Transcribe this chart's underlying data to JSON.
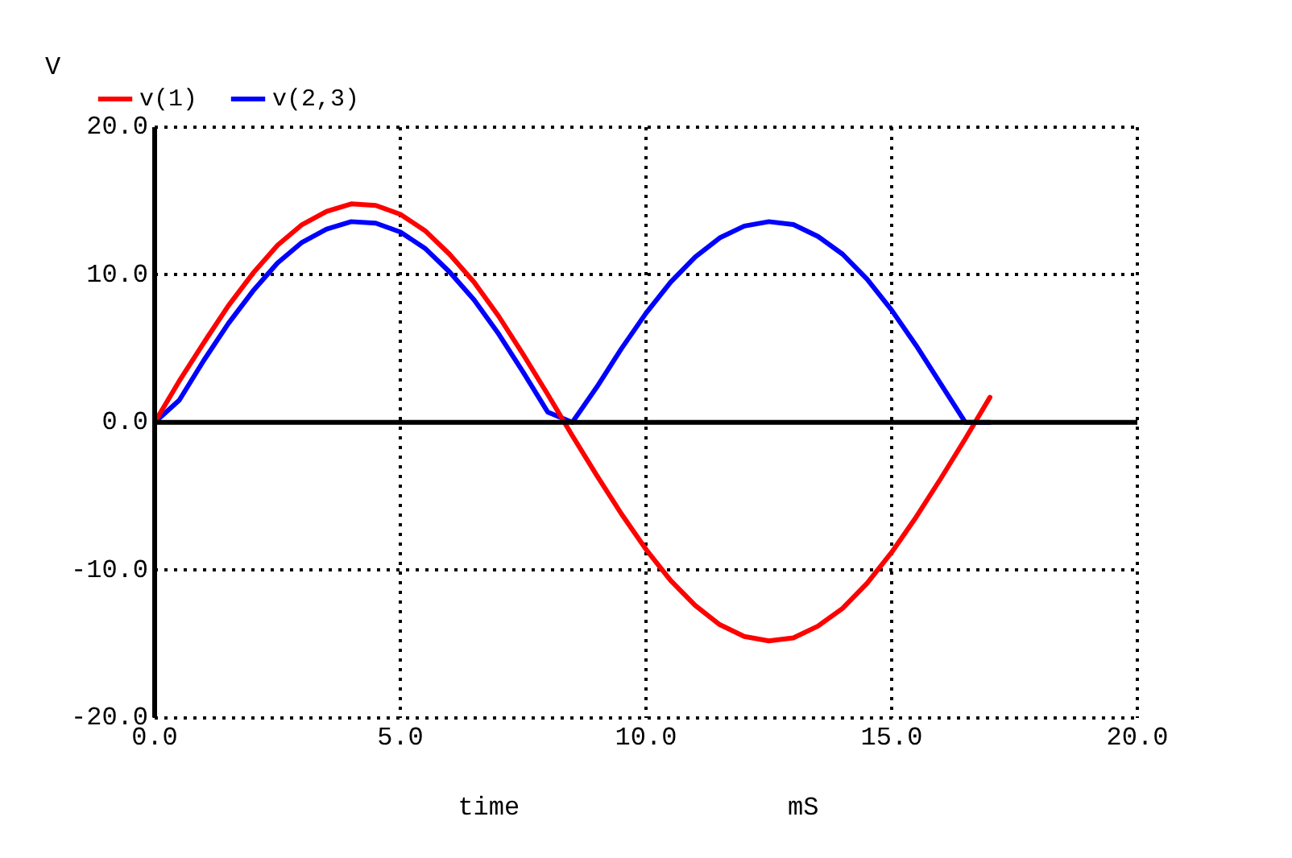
{
  "chart_data": {
    "type": "line",
    "xlabel": "time",
    "ylabel": "V",
    "annotations": [
      "mS"
    ],
    "x": [
      0,
      0.5,
      1,
      1.5,
      2,
      2.5,
      3,
      3.5,
      4,
      4.5,
      5,
      5.5,
      6,
      6.5,
      7,
      7.5,
      8,
      8.5,
      9,
      9.5,
      10,
      10.5,
      11,
      11.5,
      12,
      12.5,
      13,
      13.5,
      14,
      14.5,
      15,
      15.5,
      16,
      16.5,
      17
    ],
    "series": [
      {
        "name": "v(1)",
        "color": "#ff0000",
        "values": [
          0,
          2.8,
          5.4,
          7.9,
          10.1,
          12.0,
          13.4,
          14.3,
          14.8,
          14.7,
          14.1,
          13.0,
          11.4,
          9.5,
          7.2,
          4.6,
          1.9,
          -0.9,
          -3.6,
          -6.2,
          -8.6,
          -10.7,
          -12.4,
          -13.7,
          -14.5,
          -14.8,
          -14.6,
          -13.8,
          -12.6,
          -10.9,
          -8.8,
          -6.4,
          -3.8,
          -1.1,
          1.7
        ]
      },
      {
        "name": "v(2,3)",
        "color": "#0000ff",
        "values": [
          0,
          1.5,
          4.2,
          6.7,
          8.9,
          10.8,
          12.2,
          13.1,
          13.6,
          13.5,
          12.9,
          11.8,
          10.2,
          8.3,
          6.0,
          3.4,
          0.7,
          0,
          2.4,
          5.0,
          7.4,
          9.5,
          11.2,
          12.5,
          13.3,
          13.6,
          13.4,
          12.6,
          11.4,
          9.7,
          7.6,
          5.2,
          2.6,
          0,
          0
        ]
      }
    ],
    "xlim": [
      0,
      20
    ],
    "xticks": [
      {
        "value": 0,
        "label": "0.0"
      },
      {
        "value": 5,
        "label": "5.0"
      },
      {
        "value": 10,
        "label": "10.0"
      },
      {
        "value": 15,
        "label": "15.0"
      },
      {
        "value": 20,
        "label": "20.0"
      }
    ],
    "ylim": [
      -20,
      20
    ],
    "yticks": [
      {
        "value": -20,
        "label": "-20.0"
      },
      {
        "value": -10,
        "label": "-10.0"
      },
      {
        "value": 0,
        "label": "0.0"
      },
      {
        "value": 10,
        "label": "10.0"
      },
      {
        "value": 20,
        "label": "20.0"
      }
    ],
    "grid": true,
    "legend": "top",
    "marker": "none",
    "line_style": "solid"
  }
}
